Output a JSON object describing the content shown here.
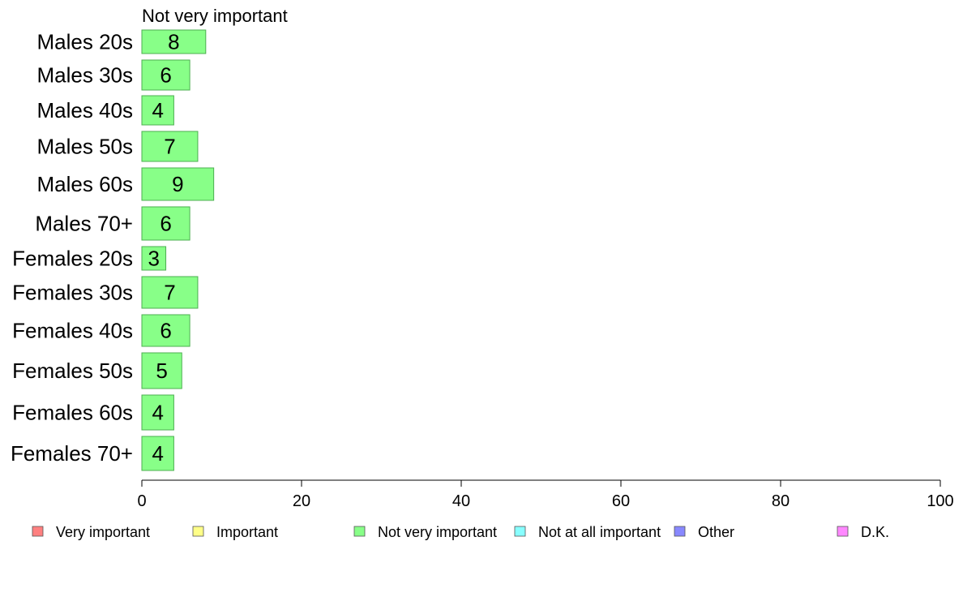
{
  "chart_data": {
    "type": "bar",
    "orientation": "horizontal",
    "title": "Not very important",
    "categories": [
      "Males 20s",
      "Males 30s",
      "Males 40s",
      "Males 50s",
      "Males 60s",
      "Males 70+",
      "Females 20s",
      "Females 30s",
      "Females 40s",
      "Females 50s",
      "Females 60s",
      "Females 70+"
    ],
    "values": [
      8,
      6,
      4,
      7,
      9,
      6,
      3,
      7,
      6,
      5,
      4,
      4
    ],
    "bar_color": "#88ff88",
    "bar_stroke": "#4caf50",
    "xlim": [
      0,
      100
    ],
    "xticks": [
      0,
      20,
      40,
      60,
      80,
      100
    ],
    "grid": false,
    "legend_position": "bottom",
    "legend": [
      {
        "label": "Very important",
        "color": "#ff8080"
      },
      {
        "label": "Important",
        "color": "#ffff88"
      },
      {
        "label": "Not very important",
        "color": "#88ff88"
      },
      {
        "label": "Not at all important",
        "color": "#88ffff"
      },
      {
        "label": "Other",
        "color": "#8888ff"
      },
      {
        "label": "D.K.",
        "color": "#ff88ff"
      }
    ]
  }
}
